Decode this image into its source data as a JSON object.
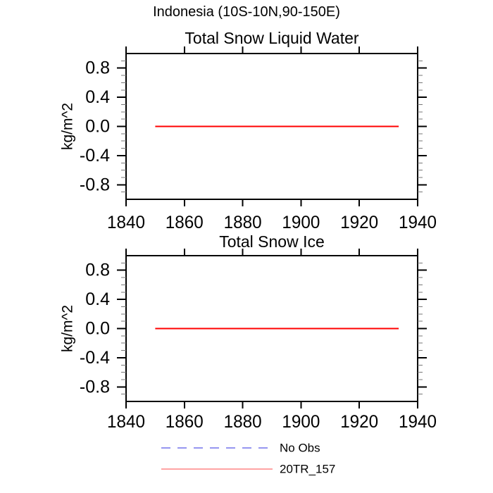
{
  "page": {
    "background_color": "#ffffff",
    "text_color": "#000000"
  },
  "chart_data": {
    "type": "line",
    "main_title": "Indonesia (10S-10N,90-150E)",
    "grid": false,
    "panels": [
      {
        "title": "Total Snow Liquid Water",
        "ylabel": "kg/m^2",
        "xlim": [
          1840,
          1940
        ],
        "ylim": [
          -1.0,
          1.0
        ],
        "xticks": [
          1840,
          1860,
          1880,
          1900,
          1920,
          1940
        ],
        "xtick_labels": [
          "1840",
          "1860",
          "1880",
          "1900",
          "1920",
          "1940"
        ],
        "ytick_values": [
          0.8,
          0.4,
          0.0,
          -0.4,
          -0.8
        ],
        "ytick_labels": [
          "0.8",
          "0.4",
          "0.0",
          "-0.4",
          "-0.8"
        ],
        "y_minor_step": 0.1,
        "series": [
          {
            "name": "20TR_157",
            "color": "#ff0000",
            "x": [
              1850,
              1933.5
            ],
            "y": [
              0.0,
              0.0
            ]
          }
        ]
      },
      {
        "title": "Total Snow Ice",
        "ylabel": "kg/m^2",
        "xlim": [
          1840,
          1940
        ],
        "ylim": [
          -1.0,
          1.0
        ],
        "xticks": [
          1840,
          1860,
          1880,
          1900,
          1920,
          1940
        ],
        "xtick_labels": [
          "1840",
          "1860",
          "1880",
          "1900",
          "1920",
          "1940"
        ],
        "ytick_values": [
          0.8,
          0.4,
          0.0,
          -0.4,
          -0.8
        ],
        "ytick_labels": [
          "0.8",
          "0.4",
          "0.0",
          "-0.4",
          "-0.8"
        ],
        "y_minor_step": 0.1,
        "series": [
          {
            "name": "20TR_157",
            "color": "#ff0000",
            "x": [
              1850,
              1933.5
            ],
            "y": [
              0.0,
              0.0
            ]
          }
        ]
      }
    ],
    "legend": {
      "position": "bottom-center",
      "entries": [
        {
          "label": "No Obs",
          "color": "#7474ec",
          "style": "dashed"
        },
        {
          "label": "20TR_157",
          "color": "#ff8585",
          "style": "solid"
        }
      ]
    },
    "frame_color": "#000000",
    "minor_tick_color": "#777777"
  }
}
